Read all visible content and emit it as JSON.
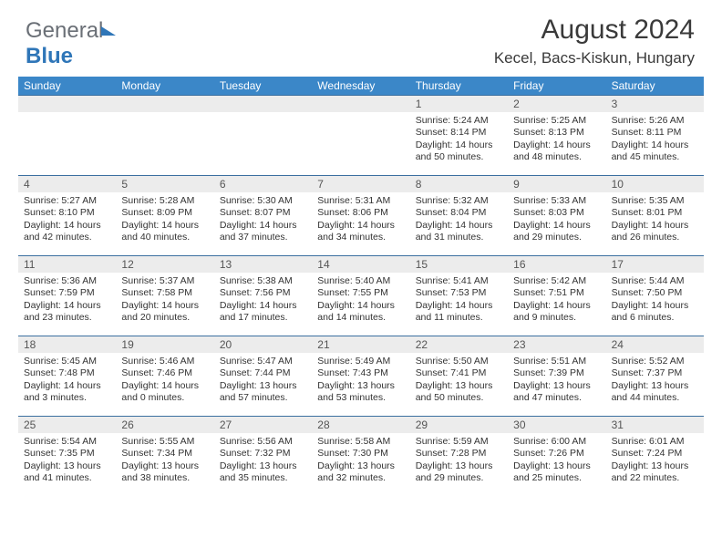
{
  "brand": {
    "part1": "General",
    "part2": "Blue"
  },
  "title": "August 2024",
  "location": "Kecel, Bacs-Kiskun, Hungary",
  "colors": {
    "header_bg": "#3b87c8",
    "cell_border": "#3b6fa0",
    "daynum_bg": "#ececec",
    "text": "#333333",
    "brand_gray": "#6a6f76",
    "brand_blue": "#2f76b8"
  },
  "day_names": [
    "Sunday",
    "Monday",
    "Tuesday",
    "Wednesday",
    "Thursday",
    "Friday",
    "Saturday"
  ],
  "leading_blanks": 4,
  "days": [
    {
      "n": "1",
      "sunrise": "Sunrise: 5:24 AM",
      "sunset": "Sunset: 8:14 PM",
      "daylight": "Daylight: 14 hours and 50 minutes."
    },
    {
      "n": "2",
      "sunrise": "Sunrise: 5:25 AM",
      "sunset": "Sunset: 8:13 PM",
      "daylight": "Daylight: 14 hours and 48 minutes."
    },
    {
      "n": "3",
      "sunrise": "Sunrise: 5:26 AM",
      "sunset": "Sunset: 8:11 PM",
      "daylight": "Daylight: 14 hours and 45 minutes."
    },
    {
      "n": "4",
      "sunrise": "Sunrise: 5:27 AM",
      "sunset": "Sunset: 8:10 PM",
      "daylight": "Daylight: 14 hours and 42 minutes."
    },
    {
      "n": "5",
      "sunrise": "Sunrise: 5:28 AM",
      "sunset": "Sunset: 8:09 PM",
      "daylight": "Daylight: 14 hours and 40 minutes."
    },
    {
      "n": "6",
      "sunrise": "Sunrise: 5:30 AM",
      "sunset": "Sunset: 8:07 PM",
      "daylight": "Daylight: 14 hours and 37 minutes."
    },
    {
      "n": "7",
      "sunrise": "Sunrise: 5:31 AM",
      "sunset": "Sunset: 8:06 PM",
      "daylight": "Daylight: 14 hours and 34 minutes."
    },
    {
      "n": "8",
      "sunrise": "Sunrise: 5:32 AM",
      "sunset": "Sunset: 8:04 PM",
      "daylight": "Daylight: 14 hours and 31 minutes."
    },
    {
      "n": "9",
      "sunrise": "Sunrise: 5:33 AM",
      "sunset": "Sunset: 8:03 PM",
      "daylight": "Daylight: 14 hours and 29 minutes."
    },
    {
      "n": "10",
      "sunrise": "Sunrise: 5:35 AM",
      "sunset": "Sunset: 8:01 PM",
      "daylight": "Daylight: 14 hours and 26 minutes."
    },
    {
      "n": "11",
      "sunrise": "Sunrise: 5:36 AM",
      "sunset": "Sunset: 7:59 PM",
      "daylight": "Daylight: 14 hours and 23 minutes."
    },
    {
      "n": "12",
      "sunrise": "Sunrise: 5:37 AM",
      "sunset": "Sunset: 7:58 PM",
      "daylight": "Daylight: 14 hours and 20 minutes."
    },
    {
      "n": "13",
      "sunrise": "Sunrise: 5:38 AM",
      "sunset": "Sunset: 7:56 PM",
      "daylight": "Daylight: 14 hours and 17 minutes."
    },
    {
      "n": "14",
      "sunrise": "Sunrise: 5:40 AM",
      "sunset": "Sunset: 7:55 PM",
      "daylight": "Daylight: 14 hours and 14 minutes."
    },
    {
      "n": "15",
      "sunrise": "Sunrise: 5:41 AM",
      "sunset": "Sunset: 7:53 PM",
      "daylight": "Daylight: 14 hours and 11 minutes."
    },
    {
      "n": "16",
      "sunrise": "Sunrise: 5:42 AM",
      "sunset": "Sunset: 7:51 PM",
      "daylight": "Daylight: 14 hours and 9 minutes."
    },
    {
      "n": "17",
      "sunrise": "Sunrise: 5:44 AM",
      "sunset": "Sunset: 7:50 PM",
      "daylight": "Daylight: 14 hours and 6 minutes."
    },
    {
      "n": "18",
      "sunrise": "Sunrise: 5:45 AM",
      "sunset": "Sunset: 7:48 PM",
      "daylight": "Daylight: 14 hours and 3 minutes."
    },
    {
      "n": "19",
      "sunrise": "Sunrise: 5:46 AM",
      "sunset": "Sunset: 7:46 PM",
      "daylight": "Daylight: 14 hours and 0 minutes."
    },
    {
      "n": "20",
      "sunrise": "Sunrise: 5:47 AM",
      "sunset": "Sunset: 7:44 PM",
      "daylight": "Daylight: 13 hours and 57 minutes."
    },
    {
      "n": "21",
      "sunrise": "Sunrise: 5:49 AM",
      "sunset": "Sunset: 7:43 PM",
      "daylight": "Daylight: 13 hours and 53 minutes."
    },
    {
      "n": "22",
      "sunrise": "Sunrise: 5:50 AM",
      "sunset": "Sunset: 7:41 PM",
      "daylight": "Daylight: 13 hours and 50 minutes."
    },
    {
      "n": "23",
      "sunrise": "Sunrise: 5:51 AM",
      "sunset": "Sunset: 7:39 PM",
      "daylight": "Daylight: 13 hours and 47 minutes."
    },
    {
      "n": "24",
      "sunrise": "Sunrise: 5:52 AM",
      "sunset": "Sunset: 7:37 PM",
      "daylight": "Daylight: 13 hours and 44 minutes."
    },
    {
      "n": "25",
      "sunrise": "Sunrise: 5:54 AM",
      "sunset": "Sunset: 7:35 PM",
      "daylight": "Daylight: 13 hours and 41 minutes."
    },
    {
      "n": "26",
      "sunrise": "Sunrise: 5:55 AM",
      "sunset": "Sunset: 7:34 PM",
      "daylight": "Daylight: 13 hours and 38 minutes."
    },
    {
      "n": "27",
      "sunrise": "Sunrise: 5:56 AM",
      "sunset": "Sunset: 7:32 PM",
      "daylight": "Daylight: 13 hours and 35 minutes."
    },
    {
      "n": "28",
      "sunrise": "Sunrise: 5:58 AM",
      "sunset": "Sunset: 7:30 PM",
      "daylight": "Daylight: 13 hours and 32 minutes."
    },
    {
      "n": "29",
      "sunrise": "Sunrise: 5:59 AM",
      "sunset": "Sunset: 7:28 PM",
      "daylight": "Daylight: 13 hours and 29 minutes."
    },
    {
      "n": "30",
      "sunrise": "Sunrise: 6:00 AM",
      "sunset": "Sunset: 7:26 PM",
      "daylight": "Daylight: 13 hours and 25 minutes."
    },
    {
      "n": "31",
      "sunrise": "Sunrise: 6:01 AM",
      "sunset": "Sunset: 7:24 PM",
      "daylight": "Daylight: 13 hours and 22 minutes."
    }
  ]
}
